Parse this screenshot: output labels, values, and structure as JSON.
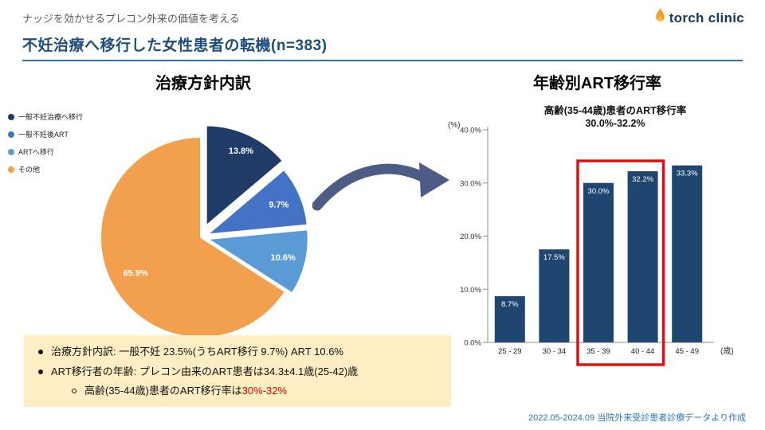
{
  "header": {
    "eyebrow": "ナッジを効かせるプレコン外来の価値を考える",
    "title": "不妊治療へ移行した女性患者の転機(n=383)",
    "logo": "torch clinic"
  },
  "summary": {
    "bullet1": "治療方針内訳: 一般不妊 23.5%(うちART移行 9.7%) ART 10.6%",
    "bullet2": "ART移行者の年齢: プレコン由来のART患者は34.3±4.1歳(25-42)歳",
    "bullet3_prefix": "高齢(35-44歳)患者のART移行率は",
    "bullet3_red": "30%-32%"
  },
  "footer": "2022.05-2024.09 当院外来受診患者診療データより作成",
  "colors": {
    "title_navy": "#1f4e79",
    "rule_blue": "#2e75b6",
    "box_yellow": "#ffeec3",
    "alert_red": "#e00000",
    "logo_orange": "#f59b22",
    "arrow_slate": "#4c5c85"
  },
  "chart_data": [
    {
      "type": "pie",
      "title": "治療方針内訳",
      "labels": [
        "一般不妊治療へ移行",
        "一般不妊後ART",
        "ARTへ移行",
        "その他"
      ],
      "values": [
        13.8,
        9.7,
        10.6,
        65.9
      ],
      "unit": "%",
      "colors": [
        "#1f3b66",
        "#4472c4",
        "#5b9bd5",
        "#f2a04e"
      ],
      "explode": [
        16,
        9,
        9,
        0
      ],
      "legend_position": "left"
    },
    {
      "type": "bar",
      "title": "年齢別ART移行率",
      "categories": [
        "25 - 29",
        "30 - 34",
        "35 - 39",
        "40 - 44",
        "45 - 49"
      ],
      "values": [
        8.7,
        17.5,
        30.0,
        32.2,
        33.3
      ],
      "ylim": [
        0,
        40
      ],
      "ytick_step": 10,
      "bar_color": "#1f4571",
      "label_color": "#ffffff",
      "highlight_indices": [
        2,
        3
      ],
      "highlight_color": "#e01010",
      "x_unit": "(歳)",
      "y_unit": "(%)",
      "annotation": [
        "高齢(35-44歳)患者のART移行率",
        "30.0%-32.2%"
      ],
      "grid": false,
      "legend_position": "none"
    }
  ]
}
